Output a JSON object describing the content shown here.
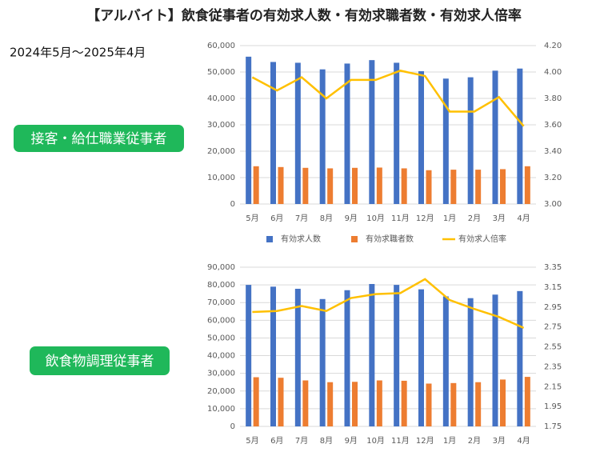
{
  "title": "【アルバイト】飲食従事者の有効求人数・有効求職者数・有効求人倍率",
  "subtitle": "2024年5月～2025年4月",
  "chart_data": [
    {
      "type": "bar-line",
      "label": "接客・給仕職業従事者",
      "legend": true,
      "grid": true,
      "categories": [
        "5月",
        "6月",
        "7月",
        "8月",
        "9月",
        "10月",
        "11月",
        "12月",
        "1月",
        "2月",
        "3月",
        "4月"
      ],
      "series": [
        {
          "name": "有効求人数",
          "type": "bar",
          "color": "#4472c4",
          "values": [
            55800,
            53800,
            53500,
            51000,
            53200,
            54500,
            53500,
            50300,
            47500,
            48000,
            50500,
            51300
          ]
        },
        {
          "name": "有効求職者数",
          "type": "bar",
          "color": "#ed7d31",
          "values": [
            14300,
            14000,
            13700,
            13500,
            13700,
            13800,
            13500,
            12800,
            13000,
            13000,
            13200,
            14300
          ]
        },
        {
          "name": "有効求人倍率",
          "type": "line",
          "axis": "y2",
          "color": "#ffc000",
          "values": [
            3.96,
            3.86,
            3.96,
            3.8,
            3.94,
            3.94,
            4.01,
            3.97,
            3.7,
            3.7,
            3.81,
            3.59
          ]
        }
      ],
      "ylim": [
        0,
        60000
      ],
      "yticks": [
        0,
        {
          "value": 10000,
          "label": "10,000"
        },
        {
          "value": 20000,
          "label": "20,000"
        },
        {
          "value": 30000,
          "label": "30,000"
        },
        {
          "value": 40000,
          "label": "40,000"
        },
        {
          "value": 50000,
          "label": "50,000"
        },
        {
          "value": 60000,
          "label": "60,000"
        }
      ],
      "y2lim": [
        3.0,
        4.2
      ],
      "y2ticks": [
        {
          "value": 3.0,
          "label": "3.00"
        },
        {
          "value": 3.2,
          "label": "3.20"
        },
        {
          "value": 3.4,
          "label": "3.40"
        },
        {
          "value": 3.6,
          "label": "3.60"
        },
        {
          "value": 3.8,
          "label": "3.80"
        },
        {
          "value": 4.0,
          "label": "4.00"
        },
        {
          "value": 4.2,
          "label": "4.20"
        }
      ]
    },
    {
      "type": "bar-line",
      "label": "飲食物調理従事者",
      "legend": false,
      "grid": true,
      "categories": [
        "5月",
        "6月",
        "7月",
        "8月",
        "9月",
        "10月",
        "11月",
        "12月",
        "1月",
        "2月",
        "3月",
        "4月"
      ],
      "series": [
        {
          "type": "bar",
          "color": "#4472c4",
          "values": [
            80000,
            79000,
            77800,
            72000,
            77000,
            80500,
            80000,
            77500,
            73500,
            72500,
            74500,
            76500
          ]
        },
        {
          "type": "bar",
          "color": "#ed7d31",
          "values": [
            27800,
            27500,
            26000,
            25000,
            25200,
            26000,
            25800,
            24200,
            24500,
            25000,
            26500,
            28000
          ]
        },
        {
          "type": "line",
          "axis": "y2",
          "color": "#ffc000",
          "values": [
            2.9,
            2.91,
            2.96,
            2.91,
            3.04,
            3.08,
            3.09,
            3.23,
            3.02,
            2.93,
            2.85,
            2.74
          ]
        }
      ],
      "ylim": [
        0,
        90000
      ],
      "yticks": [
        0,
        {
          "value": 10000,
          "label": "10,000"
        },
        {
          "value": 20000,
          "label": "20,000"
        },
        {
          "value": 30000,
          "label": "30,000"
        },
        {
          "value": 40000,
          "label": "40,000"
        },
        {
          "value": 50000,
          "label": "50,000"
        },
        {
          "value": 60000,
          "label": "60,000"
        },
        {
          "value": 70000,
          "label": "70,000"
        },
        {
          "value": 80000,
          "label": "80,000"
        },
        {
          "value": 90000,
          "label": "90,000"
        }
      ],
      "y2lim": [
        1.75,
        3.35
      ],
      "y2ticks": [
        {
          "value": 1.75,
          "label": "1.75"
        },
        {
          "value": 1.95,
          "label": "1.95"
        },
        {
          "value": 2.15,
          "label": "2.15"
        },
        {
          "value": 2.35,
          "label": "2.35"
        },
        {
          "value": 2.55,
          "label": "2.55"
        },
        {
          "value": 2.75,
          "label": "2.75"
        },
        {
          "value": 2.95,
          "label": "2.95"
        },
        {
          "value": 3.15,
          "label": "3.15"
        },
        {
          "value": 3.35,
          "label": "3.35"
        }
      ]
    }
  ]
}
